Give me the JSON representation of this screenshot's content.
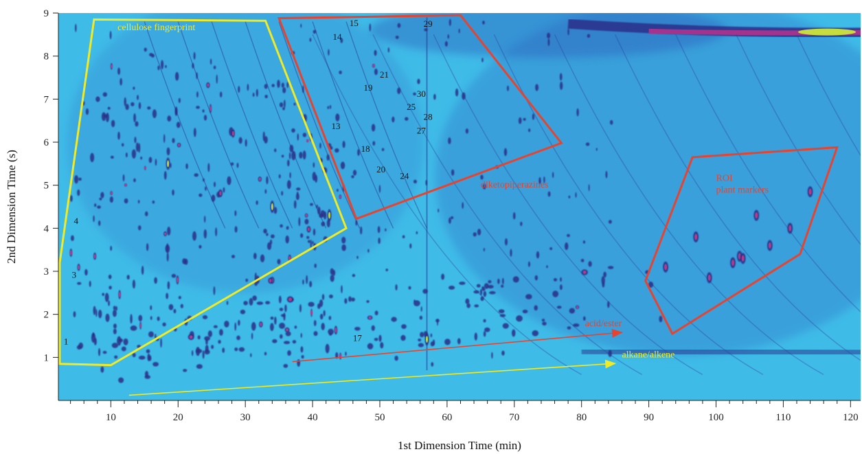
{
  "chart_data": {
    "type": "heatmap",
    "title": "",
    "xlabel": "1st Dimension Time (min)",
    "ylabel": "2nd Dimension Time (s)",
    "xlim": [
      2.2,
      121.5
    ],
    "ylim": [
      0,
      9
    ],
    "x_ticks": [
      10,
      20,
      30,
      40,
      50,
      60,
      70,
      80,
      90,
      100,
      110,
      120
    ],
    "y_ticks": [
      1,
      2,
      3,
      4,
      5,
      6,
      7,
      8,
      9
    ],
    "colors": {
      "background": "#3fbbe8",
      "peak": "#2a2f86",
      "peak_core": "#c03a8a",
      "hot": "#c9e63a",
      "yellow_region": "#f2ea22",
      "red_region": "#e8432e"
    },
    "regions": [
      {
        "label": "cellulose fingerprint",
        "color": "yellow",
        "polygon": [
          [
            2.4,
            0.85
          ],
          [
            10,
            0.82
          ],
          [
            45,
            4.0
          ],
          [
            33,
            8.82
          ],
          [
            7.5,
            8.85
          ],
          [
            2.4,
            3.2
          ]
        ],
        "label_at": [
          11,
          8.6
        ]
      },
      {
        "label": "diketopiperazines",
        "color": "red",
        "polygon": [
          [
            35,
            8.88
          ],
          [
            62,
            8.95
          ],
          [
            77,
            5.98
          ],
          [
            46.5,
            4.22
          ]
        ],
        "label_at": [
          65,
          4.95
        ]
      },
      {
        "label": "ROI\nplant markers",
        "color": "red",
        "polygon": [
          [
            96.5,
            5.65
          ],
          [
            118,
            5.88
          ],
          [
            112.5,
            3.4
          ],
          [
            93.5,
            1.55
          ],
          [
            89.5,
            2.78
          ]
        ],
        "label_at": [
          100,
          5.1
        ]
      }
    ],
    "arrows": [
      {
        "label": "acid/ester",
        "color": "red",
        "from": [
          37,
          0.9
        ],
        "to": [
          86,
          1.58
        ],
        "label_at": [
          80.5,
          1.72
        ]
      },
      {
        "label": "alkane/alkene",
        "color": "yellow",
        "from": [
          12.7,
          0.12
        ],
        "to": [
          85,
          0.86
        ],
        "label_at": [
          86,
          1.0
        ]
      }
    ],
    "peak_labels": [
      {
        "id": "1",
        "x": 3.0,
        "y": 1.3
      },
      {
        "id": "3",
        "x": 4.2,
        "y": 2.85
      },
      {
        "id": "4",
        "x": 4.5,
        "y": 4.1
      },
      {
        "id": "13",
        "x": 42.8,
        "y": 6.3
      },
      {
        "id": "14",
        "x": 43.0,
        "y": 8.38
      },
      {
        "id": "15",
        "x": 45.5,
        "y": 8.7
      },
      {
        "id": "17",
        "x": 46.0,
        "y": 1.38
      },
      {
        "id": "18",
        "x": 47.2,
        "y": 5.78
      },
      {
        "id": "19",
        "x": 47.6,
        "y": 7.2
      },
      {
        "id": "20",
        "x": 49.5,
        "y": 5.3
      },
      {
        "id": "21",
        "x": 50.0,
        "y": 7.5
      },
      {
        "id": "24",
        "x": 53.0,
        "y": 5.15
      },
      {
        "id": "25",
        "x": 54.0,
        "y": 6.75
      },
      {
        "id": "27",
        "x": 55.5,
        "y": 6.2
      },
      {
        "id": "28",
        "x": 56.5,
        "y": 6.52
      },
      {
        "id": "29",
        "x": 56.5,
        "y": 8.68
      },
      {
        "id": "30",
        "x": 55.5,
        "y": 7.05
      }
    ]
  }
}
